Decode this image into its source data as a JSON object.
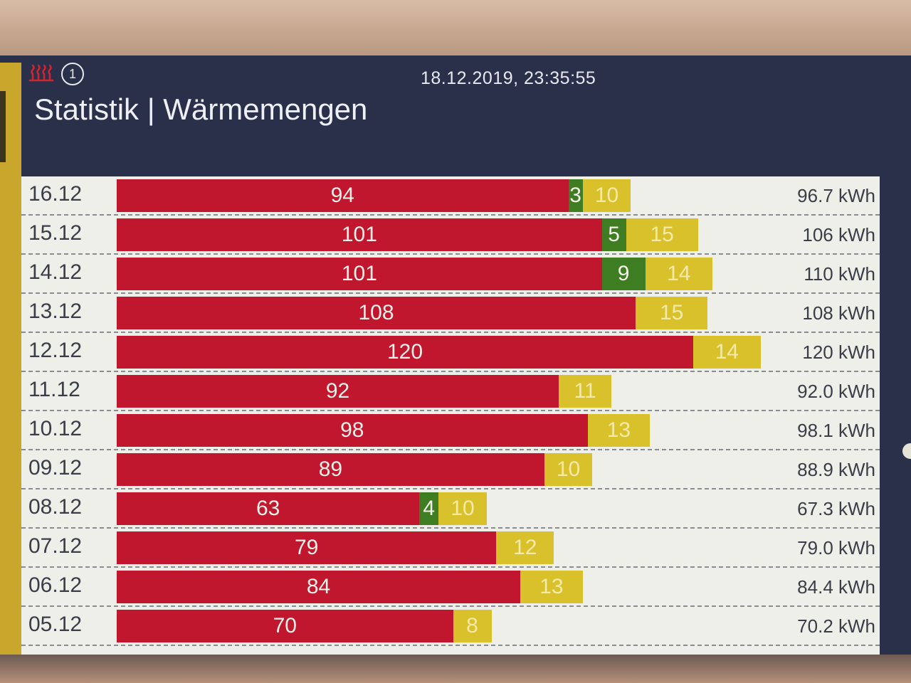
{
  "header": {
    "datetime": "18.12.2019, 23:35:55",
    "title": "Statistik | Wärmemengen",
    "heat_icon": "heating-icon",
    "info_icon_label": "1"
  },
  "colors": {
    "segment_1": "#c0162e",
    "segment_2": "#3f7d22",
    "segment_3": "#d9c12c",
    "panel_background": "#2a2f4a"
  },
  "chart_data": {
    "type": "bar",
    "orientation": "horizontal",
    "stacked": true,
    "categories": [
      "16.12",
      "15.12",
      "14.12",
      "13.12",
      "12.12",
      "11.12",
      "10.12",
      "09.12",
      "08.12",
      "07.12",
      "06.12",
      "05.12"
    ],
    "series": [
      {
        "color": "#c0162e",
        "values": [
          94,
          101,
          101,
          108,
          120,
          92,
          98,
          89,
          63,
          79,
          84,
          70
        ]
      },
      {
        "color": "#3f7d22",
        "values": [
          3,
          5,
          9,
          0,
          0,
          0,
          0,
          0,
          4,
          0,
          0,
          0
        ]
      },
      {
        "color": "#d9c12c",
        "values": [
          10,
          15,
          14,
          15,
          14,
          11,
          13,
          10,
          10,
          12,
          13,
          8
        ]
      }
    ],
    "totals": [
      "96.7 kWh",
      "106 kWh",
      "110 kWh",
      "108 kWh",
      "120 kWh",
      "92.0 kWh",
      "98.1 kWh",
      "88.9 kWh",
      "67.3 kWh",
      "79.0 kWh",
      "84.4 kWh",
      "70.2 kWh"
    ]
  }
}
